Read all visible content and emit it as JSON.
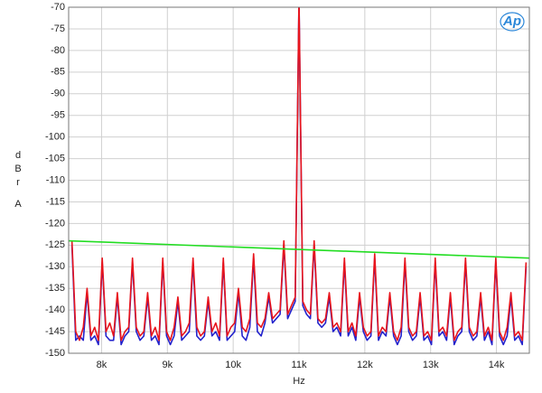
{
  "chart_data": {
    "type": "line",
    "xlabel": "Hz",
    "ylabel": [
      "dBr",
      "A"
    ],
    "logo": "Ap",
    "xlim": [
      7500,
      14500
    ],
    "ylim": [
      -150,
      -70
    ],
    "xticks": [
      {
        "value": 8000,
        "label": "8k"
      },
      {
        "value": 9000,
        "label": "9k"
      },
      {
        "value": 10000,
        "label": "10k"
      },
      {
        "value": 11000,
        "label": "11k"
      },
      {
        "value": 12000,
        "label": "12k"
      },
      {
        "value": 13000,
        "label": "13k"
      },
      {
        "value": 14000,
        "label": "14k"
      }
    ],
    "yticks": [
      -150,
      -145,
      -140,
      -135,
      -130,
      -125,
      -120,
      -115,
      -110,
      -105,
      -100,
      -95,
      -90,
      -85,
      -80,
      -75,
      -70
    ],
    "grid": true,
    "x": [
      7550,
      7607.5,
      7665,
      7722.5,
      7780,
      7837.5,
      7895,
      7952.5,
      8010,
      8067.5,
      8125,
      8182.5,
      8240,
      8297.5,
      8355,
      8412.5,
      8470,
      8527.5,
      8585,
      8642.5,
      8700,
      8757.5,
      8815,
      8872.5,
      8930,
      8987.5,
      9045,
      9102.5,
      9160,
      9217.5,
      9275,
      9332.5,
      9390,
      9447.5,
      9505,
      9562.5,
      9620,
      9677.5,
      9735,
      9792.5,
      9850,
      9907.5,
      9965,
      10022.5,
      10080,
      10137.5,
      10195,
      10252.5,
      10310,
      10367.5,
      10425,
      10482.5,
      10540,
      10597.5,
      10655,
      10712.5,
      10770,
      10827.5,
      10885,
      10942.5,
      11000,
      11057.5,
      11115,
      11172.5,
      11230,
      11287.5,
      11345,
      11402.5,
      11460,
      11517.5,
      11575,
      11632.5,
      11690,
      11747.5,
      11805,
      11862.5,
      11920,
      11977.5,
      12035,
      12092.5,
      12150,
      12207.5,
      12265,
      12322.5,
      12380,
      12437.5,
      12495,
      12552.5,
      12610,
      12667.5,
      12725,
      12782.5,
      12840,
      12897.5,
      12955,
      13012.5,
      13070,
      13127.5,
      13185,
      13242.5,
      13300,
      13357.5,
      13415,
      13472.5,
      13530,
      13587.5,
      13645,
      13702.5,
      13760,
      13817.5,
      13875,
      13932.5,
      13990,
      14047.5,
      14105,
      14162.5,
      14220,
      14277.5,
      14335,
      14392.5,
      14450
    ],
    "series": [
      {
        "color": "#2222cc",
        "values": [
          -125,
          -147,
          -146,
          -147,
          -136,
          -147,
          -146,
          -148,
          -129,
          -146,
          -147,
          -147,
          -137,
          -148,
          -146,
          -145,
          -129,
          -145,
          -147,
          -146,
          -137,
          -147,
          -146,
          -148,
          -129,
          -146,
          -148,
          -146,
          -138,
          -147,
          -146,
          -145,
          -129,
          -146,
          -147,
          -146,
          -138,
          -146,
          -145,
          -147,
          -129,
          -147,
          -146,
          -145,
          -136,
          -146,
          -147,
          -144,
          -128,
          -145,
          -146,
          -143,
          -137,
          -143,
          -142,
          -141,
          -125,
          -142,
          -140,
          -138,
          -68,
          -139,
          -141,
          -142,
          -125,
          -143,
          -144,
          -143,
          -137,
          -145,
          -144,
          -146,
          -129,
          -146,
          -144,
          -147,
          -137,
          -145,
          -147,
          -146,
          -128,
          -147,
          -145,
          -146,
          -137,
          -146,
          -148,
          -146,
          -129,
          -145,
          -147,
          -146,
          -137,
          -147,
          -146,
          -148,
          -129,
          -146,
          -145,
          -147,
          -137,
          -148,
          -146,
          -145,
          -129,
          -145,
          -147,
          -146,
          -137,
          -147,
          -145,
          -148,
          -129,
          -146,
          -148,
          -146,
          -137,
          -147,
          -146,
          -148,
          -130
        ]
      },
      {
        "color": "#e8141c",
        "values": [
          -124,
          -145,
          -147,
          -144,
          -135,
          -146,
          -144,
          -147,
          -128,
          -145,
          -143,
          -146,
          -136,
          -147,
          -145,
          -144,
          -128,
          -144,
          -146,
          -145,
          -136,
          -146,
          -144,
          -147,
          -128,
          -145,
          -147,
          -144,
          -137,
          -146,
          -145,
          -143,
          -128,
          -144,
          -146,
          -145,
          -137,
          -145,
          -143,
          -146,
          -128,
          -146,
          -144,
          -143,
          -135,
          -144,
          -145,
          -142,
          -127,
          -143,
          -144,
          -142,
          -136,
          -142,
          -141,
          -140,
          -124,
          -141,
          -139,
          -137,
          -68,
          -138,
          -140,
          -141,
          -124,
          -142,
          -143,
          -142,
          -136,
          -144,
          -143,
          -145,
          -128,
          -145,
          -143,
          -146,
          -136,
          -144,
          -146,
          -145,
          -127,
          -146,
          -144,
          -145,
          -136,
          -145,
          -147,
          -144,
          -128,
          -144,
          -146,
          -145,
          -136,
          -146,
          -145,
          -147,
          -128,
          -145,
          -144,
          -146,
          -136,
          -147,
          -145,
          -144,
          -128,
          -144,
          -146,
          -145,
          -136,
          -146,
          -144,
          -147,
          -128,
          -145,
          -147,
          -144,
          -136,
          -146,
          -145,
          -147,
          -129
        ]
      },
      {
        "color": "#22dd22",
        "x": [
          7500,
          14500
        ],
        "values": [
          -124,
          -128
        ]
      }
    ]
  }
}
